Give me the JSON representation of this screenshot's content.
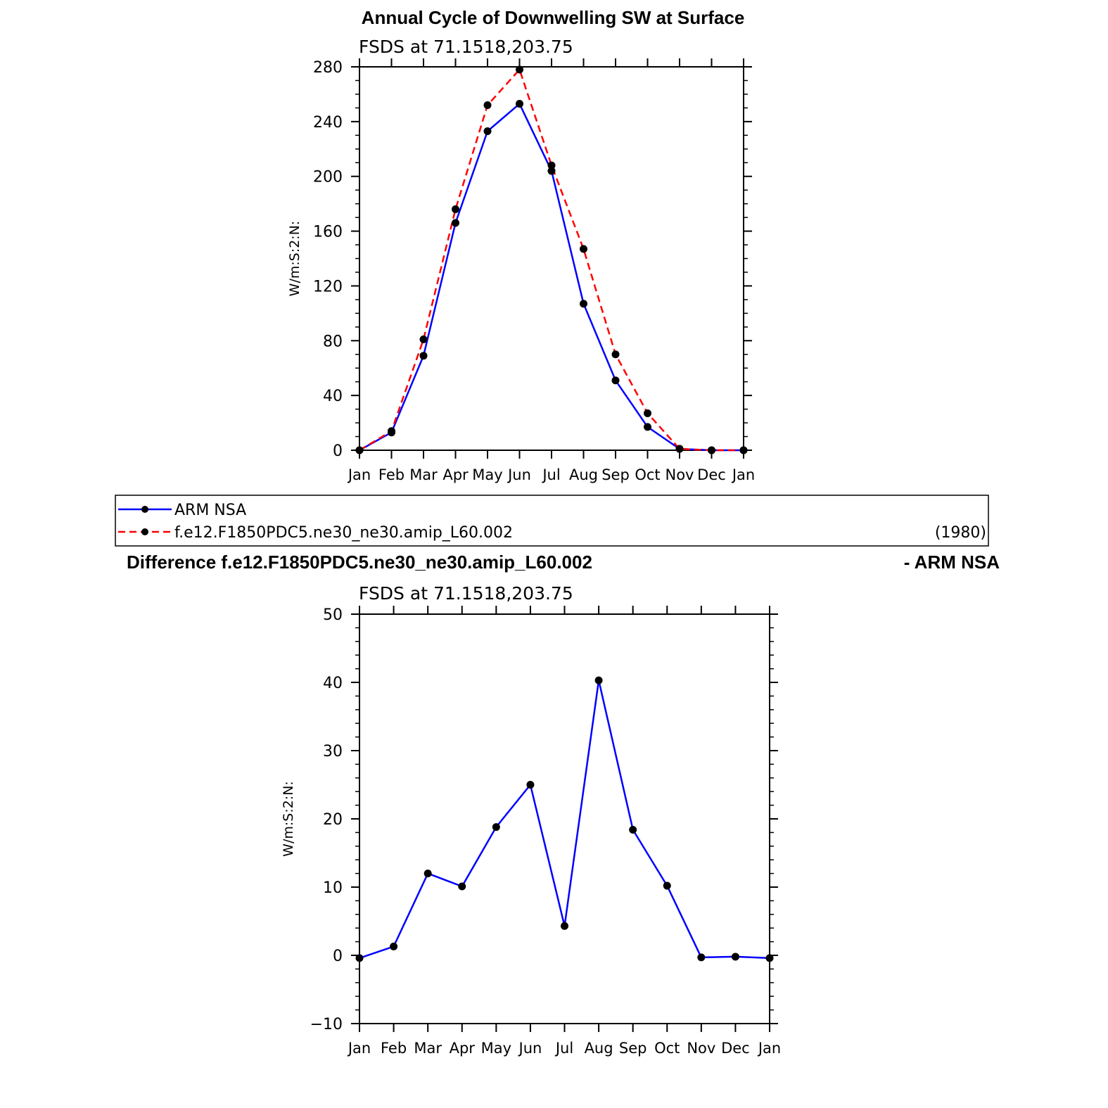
{
  "chart_data": [
    {
      "type": "line",
      "title": "Annual Cycle of Downwelling SW at Surface",
      "subtitle": "FSDS at 71.1518,203.75",
      "ylabel": "W/m:S:2:N:",
      "xlabel": "",
      "categories": [
        "Jan",
        "Feb",
        "Mar",
        "Apr",
        "May",
        "Jun",
        "Jul",
        "Aug",
        "Sep",
        "Oct",
        "Nov",
        "Dec",
        "Jan"
      ],
      "ylim": [
        0,
        280
      ],
      "yticks": [
        0,
        40,
        80,
        120,
        160,
        200,
        240,
        280
      ],
      "grid": false,
      "series": [
        {
          "name": "ARM NSA",
          "color": "#0000ff",
          "dash": "solid",
          "values": [
            0,
            13,
            69,
            166,
            233,
            253,
            204,
            107,
            51,
            17,
            1,
            0,
            0
          ]
        },
        {
          "name": "f.e12.F1850PDC5.ne30_ne30.amip_L60.002",
          "color": "#ff0000",
          "dash": "dashed",
          "values": [
            0,
            14,
            81,
            176,
            252,
            278,
            208,
            147,
            70,
            27,
            1,
            0,
            0
          ]
        }
      ],
      "legend": {
        "entries": [
          "ARM NSA",
          "f.e12.F1850PDC5.ne30_ne30.amip_L60.002"
        ],
        "note": "(1980)",
        "placement": "below"
      }
    },
    {
      "type": "line",
      "title_left": "Difference f.e12.F1850PDC5.ne30_ne30.amip_L60.002",
      "title_right": "- ARM NSA",
      "subtitle": "FSDS at 71.1518,203.75",
      "ylabel": "W/m:S:2:N:",
      "xlabel": "",
      "categories": [
        "Jan",
        "Feb",
        "Mar",
        "Apr",
        "May",
        "Jun",
        "Jul",
        "Aug",
        "Sep",
        "Oct",
        "Nov",
        "Dec",
        "Jan"
      ],
      "ylim": [
        -10,
        50
      ],
      "yticks": [
        -10,
        0,
        10,
        20,
        30,
        40,
        50
      ],
      "ytick_labels": [
        "−10",
        "0",
        "10",
        "20",
        "30",
        "40",
        "50"
      ],
      "grid": false,
      "series": [
        {
          "color": "#0000ff",
          "dash": "solid",
          "values": [
            -0.4,
            1.3,
            12,
            10.1,
            18.8,
            25,
            4.3,
            40.3,
            18.4,
            10.2,
            -0.3,
            -0.2,
            -0.4
          ]
        }
      ]
    }
  ]
}
